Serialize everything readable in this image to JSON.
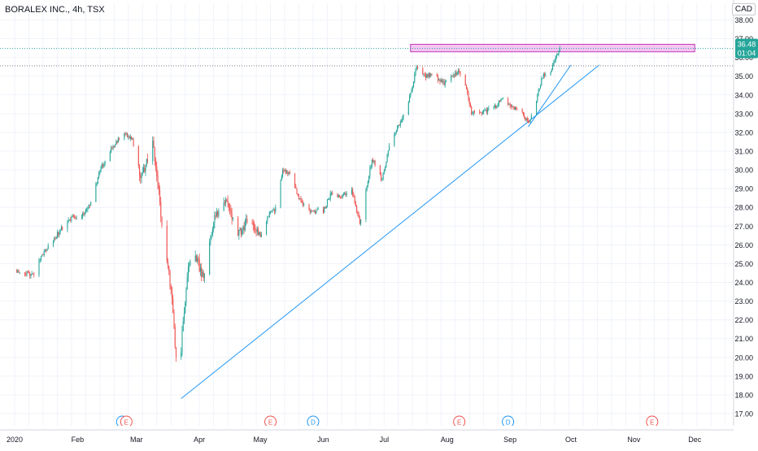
{
  "title": "BORALEX INC., 4h, TSX",
  "currency": "CAD",
  "price_badge": {
    "price": "36.48",
    "countdown": "01:04",
    "color": "#26a69a"
  },
  "colors": {
    "up": "#26a69a",
    "down": "#ef5350",
    "trend": "#2196f3",
    "zone_fill": "#f3b3ee",
    "zone_stroke": "#c23bb6",
    "grid": "#f0f3fa",
    "event_e": "#ef5350",
    "event_d": "#2196f3"
  },
  "chart_data": {
    "type": "candlestick",
    "symbol": "BORALEX INC.",
    "interval": "4h",
    "exchange": "TSX",
    "x_ticks": [
      "2020",
      "Feb",
      "Mar",
      "Apr",
      "May",
      "Jun",
      "Jul",
      "Aug",
      "Sep",
      "Oct",
      "Nov",
      "Dec"
    ],
    "y_ticks": [
      "17.00",
      "18.00",
      "19.00",
      "20.00",
      "21.00",
      "22.00",
      "23.00",
      "24.00",
      "25.00",
      "26.00",
      "27.00",
      "28.00",
      "29.00",
      "30.00",
      "31.00",
      "32.00",
      "33.00",
      "34.00",
      "35.00",
      "36.00",
      "37.00",
      "38.00"
    ],
    "ylim": [
      16.5,
      38.5
    ],
    "price_path": [
      [
        "2020-01-02",
        24.6
      ],
      [
        "2020-01-10",
        24.4
      ],
      [
        "2020-01-15",
        25.5
      ],
      [
        "2020-01-20",
        26.3
      ],
      [
        "2020-01-28",
        27.4
      ],
      [
        "2020-02-03",
        27.6
      ],
      [
        "2020-02-08",
        28.3
      ],
      [
        "2020-02-12",
        30.0
      ],
      [
        "2020-02-18",
        31.2
      ],
      [
        "2020-02-24",
        32.0
      ],
      [
        "2020-02-28",
        31.6
      ],
      [
        "2020-03-03",
        29.5
      ],
      [
        "2020-03-06",
        30.5
      ],
      [
        "2020-03-09",
        31.4
      ],
      [
        "2020-03-12",
        29.0
      ],
      [
        "2020-03-14",
        26.5
      ],
      [
        "2020-03-17",
        24.5
      ],
      [
        "2020-03-19",
        22.5
      ],
      [
        "2020-03-21",
        19.0
      ],
      [
        "2020-03-23",
        20.5
      ],
      [
        "2020-03-26",
        24.5
      ],
      [
        "2020-03-30",
        25.5
      ],
      [
        "2020-04-03",
        24.2
      ],
      [
        "2020-04-07",
        26.8
      ],
      [
        "2020-04-12",
        28.5
      ],
      [
        "2020-04-16",
        28.0
      ],
      [
        "2020-04-20",
        26.5
      ],
      [
        "2020-04-24",
        27.2
      ],
      [
        "2020-05-01",
        26.5
      ],
      [
        "2020-05-05",
        27.6
      ],
      [
        "2020-05-09",
        28.0
      ],
      [
        "2020-05-12",
        30.0
      ],
      [
        "2020-05-16",
        29.8
      ],
      [
        "2020-05-20",
        28.5
      ],
      [
        "2020-05-25",
        27.8
      ],
      [
        "2020-06-01",
        27.8
      ],
      [
        "2020-06-05",
        28.8
      ],
      [
        "2020-06-10",
        28.5
      ],
      [
        "2020-06-15",
        29.0
      ],
      [
        "2020-06-19",
        27.2
      ],
      [
        "2020-06-22",
        28.8
      ],
      [
        "2020-06-25",
        30.6
      ],
      [
        "2020-06-30",
        29.5
      ],
      [
        "2020-07-04",
        31.5
      ],
      [
        "2020-07-08",
        32.3
      ],
      [
        "2020-07-12",
        33.2
      ],
      [
        "2020-07-15",
        34.5
      ],
      [
        "2020-07-17",
        35.6
      ],
      [
        "2020-07-20",
        35.0
      ],
      [
        "2020-07-25",
        35.1
      ],
      [
        "2020-07-30",
        34.6
      ],
      [
        "2020-08-03",
        34.9
      ],
      [
        "2020-08-07",
        35.3
      ],
      [
        "2020-08-11",
        34.2
      ],
      [
        "2020-08-13",
        33.0
      ],
      [
        "2020-08-18",
        33.1
      ],
      [
        "2020-08-24",
        33.3
      ],
      [
        "2020-08-28",
        33.8
      ],
      [
        "2020-09-02",
        33.4
      ],
      [
        "2020-09-07",
        33.0
      ],
      [
        "2020-09-10",
        32.5
      ],
      [
        "2020-09-14",
        33.8
      ],
      [
        "2020-09-17",
        35.0
      ],
      [
        "2020-09-21",
        35.2
      ],
      [
        "2020-09-24",
        36.2
      ],
      [
        "2020-09-26",
        36.48
      ]
    ],
    "last_price": "36.48",
    "drawings": {
      "resistance_zone": {
        "from": "2020-07-14",
        "to": "2020-12-01",
        "low": 36.3,
        "high": 36.7
      },
      "trendline_long": {
        "from": [
          "2020-03-23",
          17.8
        ],
        "to": [
          "2020-10-15",
          35.6
        ]
      },
      "trendline_short": {
        "from": [
          "2020-09-10",
          32.3
        ],
        "to": [
          "2020-10-01",
          35.6
        ]
      }
    },
    "events": [
      {
        "date": "2020-02-25",
        "type": "E",
        "kind": "earnings",
        "double": true
      },
      {
        "date": "2020-05-06",
        "type": "E",
        "kind": "earnings"
      },
      {
        "date": "2020-05-27",
        "type": "D",
        "kind": "dividend"
      },
      {
        "date": "2020-08-07",
        "type": "E",
        "kind": "earnings"
      },
      {
        "date": "2020-08-31",
        "type": "D",
        "kind": "dividend"
      },
      {
        "date": "2020-11-10",
        "type": "E",
        "kind": "earnings"
      }
    ]
  }
}
